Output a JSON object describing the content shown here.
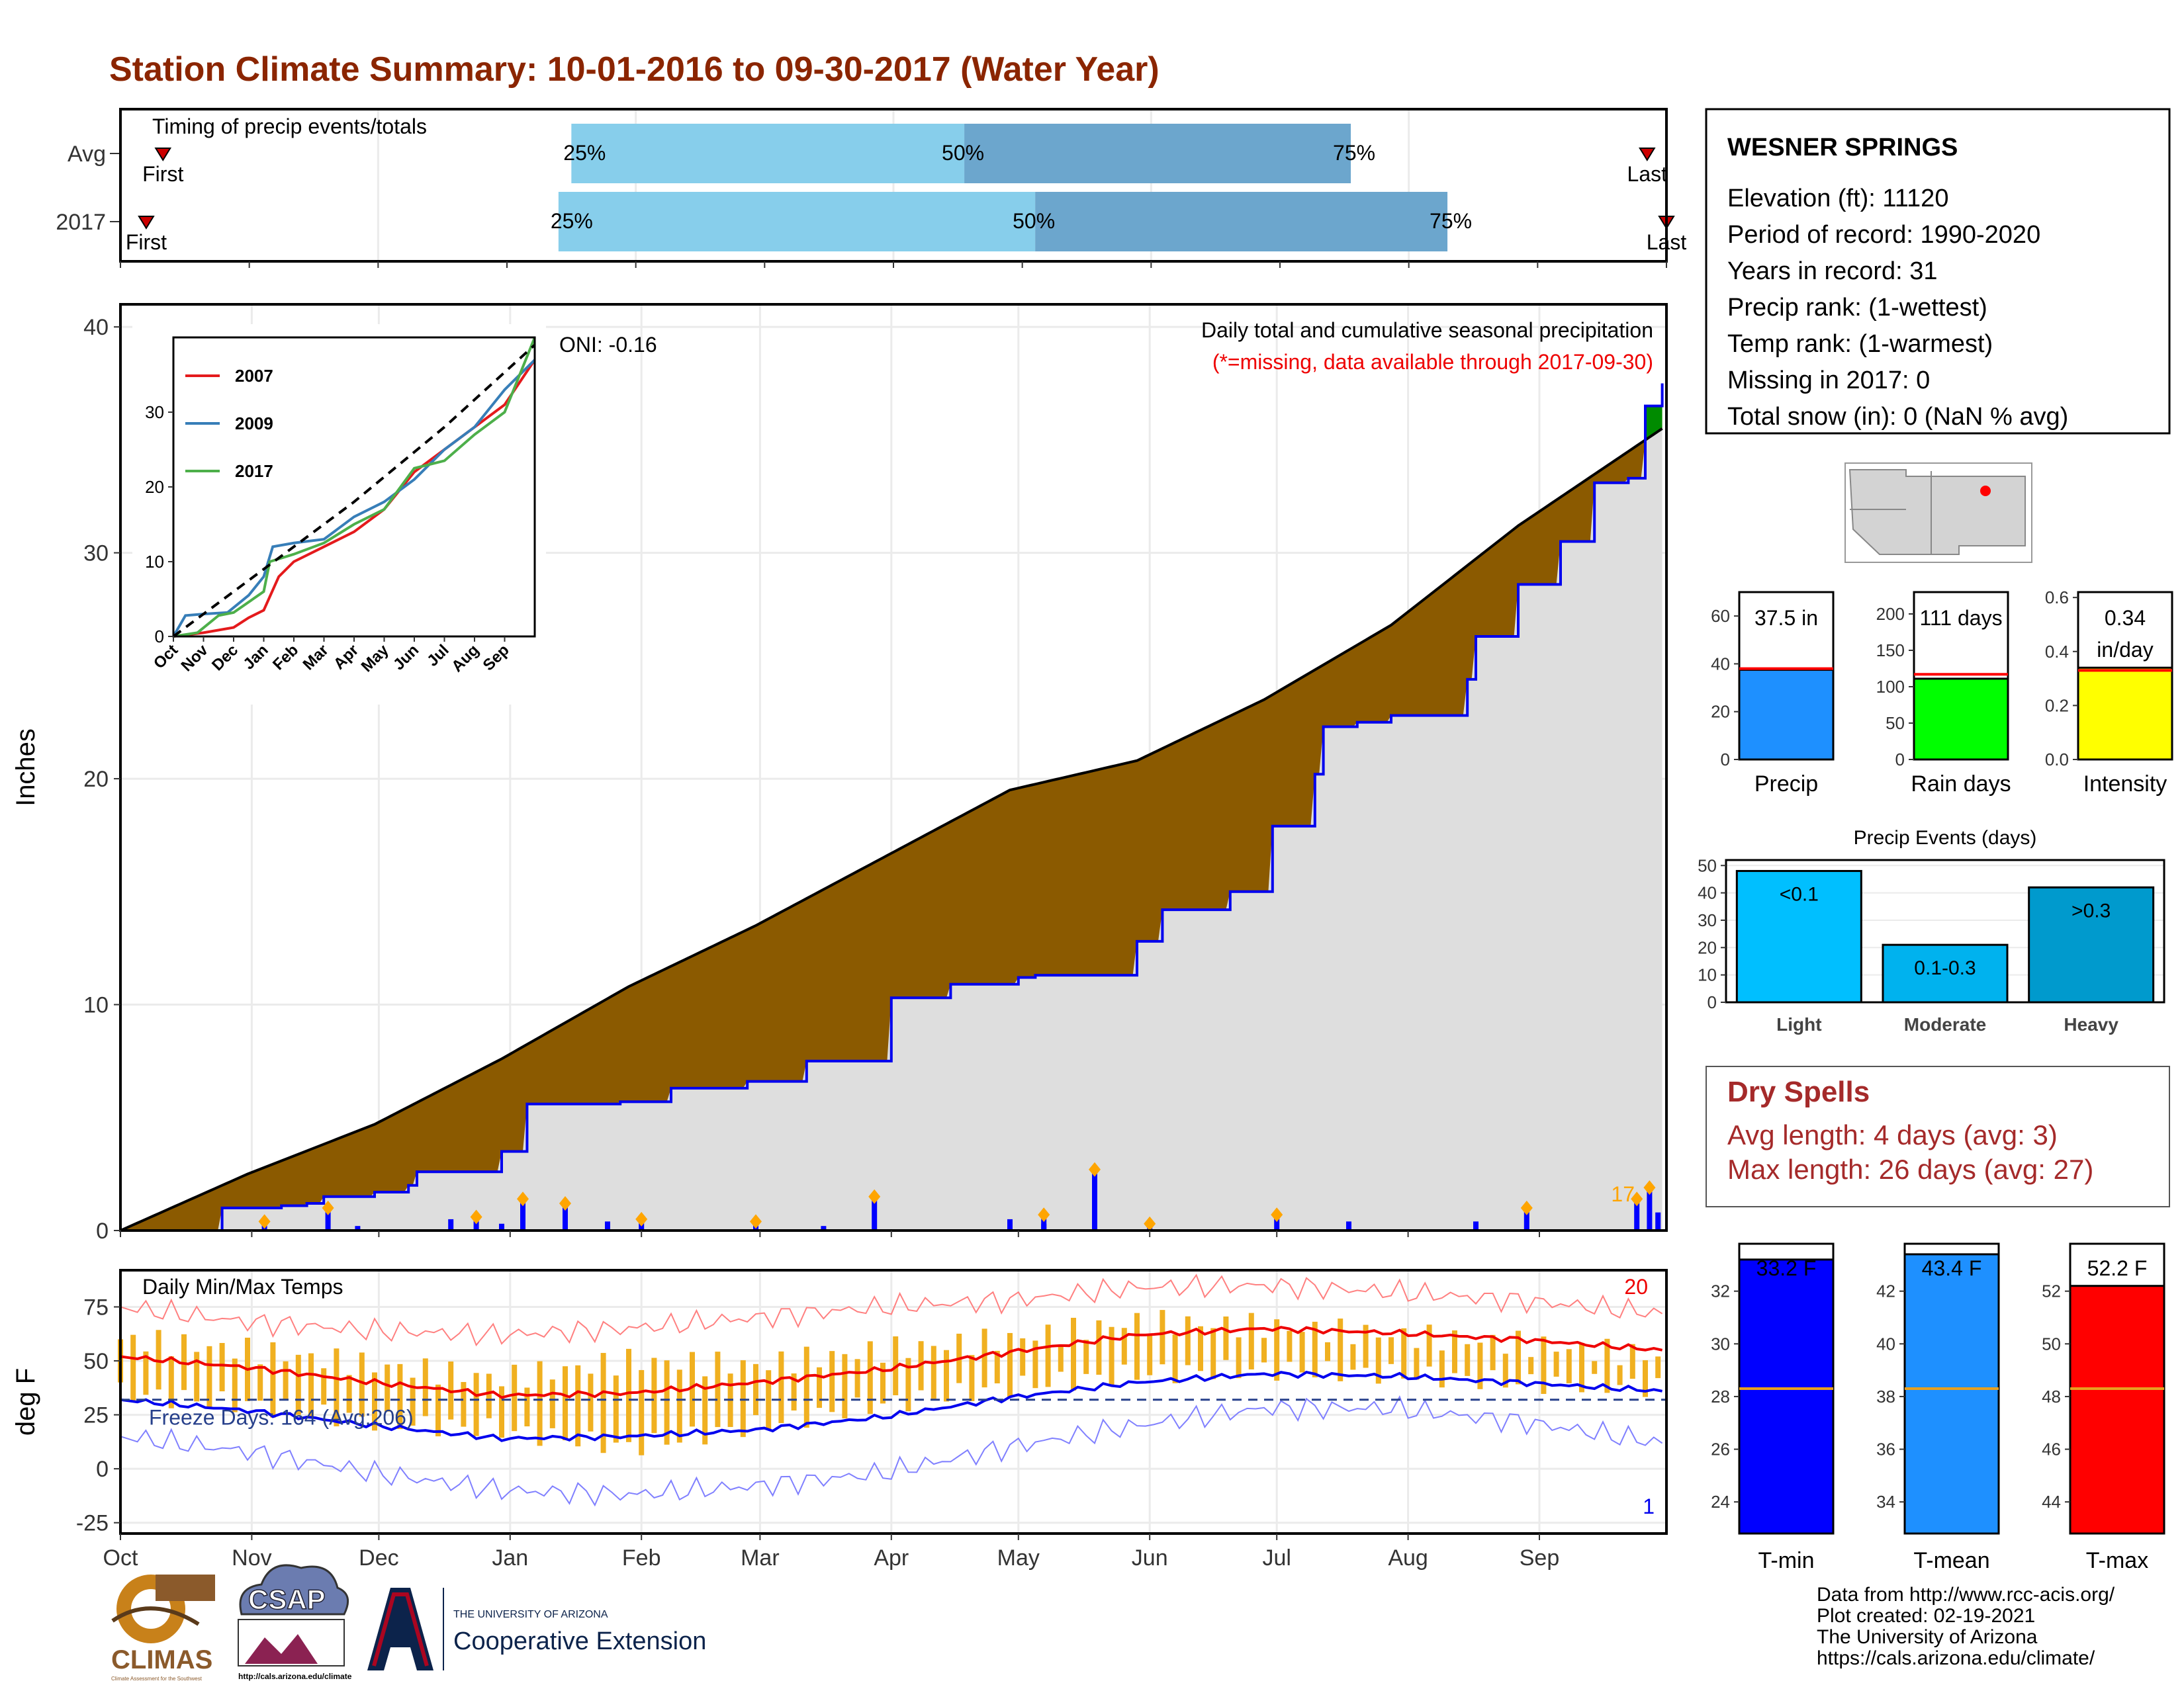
{
  "page": {
    "title": "Station Climate Summary: 10-01-2016 to 09-30-2017 (Water Year)",
    "title_color": "#8B2500",
    "footer_credit": [
      "Data from http://www.rcc-acis.org/",
      "Plot created: 02-19-2021",
      "The University of Arizona",
      "https://cals.arizona.edu/climate/"
    ],
    "logos": {
      "climas": "CLIMAS",
      "climas_subtitle": "Climate Assessment for the Southwest",
      "csap": "CSAP",
      "csap_url": "http://cals.arizona.edu/climate",
      "ua_letter": "A",
      "ua_small": "THE UNIVERSITY OF ARIZONA",
      "ua_extension": "Cooperative Extension"
    }
  },
  "chart_data": [
    {
      "id": "timing",
      "type": "bar",
      "title": "Timing of precip events/totals",
      "categories": [
        "Avg",
        "2017"
      ],
      "x_range_months": [
        0,
        12
      ],
      "rows": [
        {
          "label": "Avg",
          "first": 0.33,
          "last": 11.85,
          "q25": 3.5,
          "q50": 6.55,
          "q75": 9.55,
          "q25_label": "25%",
          "q50_label": "50%",
          "q75_label": "75%",
          "first_label": "First",
          "last_label": "Last"
        },
        {
          "label": "2017",
          "first": 0.2,
          "last": 12.0,
          "q25": 3.4,
          "q50": 7.1,
          "q75": 10.3,
          "q25_label": "25%",
          "q50_label": "50%",
          "q75_label": "75%",
          "first_label": "First",
          "last_label": "Last"
        }
      ],
      "colors": {
        "light": "#87CEEB",
        "dark": "#6CA6CD",
        "marker": "#CC0000"
      }
    },
    {
      "id": "precip",
      "type": "area",
      "title": "Daily total and cumulative seasonal precipitation",
      "subtitle": "(*=missing, data available through 2017-09-30)",
      "ylabel": "Inches",
      "ylim": [
        0,
        41
      ],
      "yticks": [
        0,
        10,
        20,
        30,
        40
      ],
      "oni": "ONI: -0.16",
      "count_label": "17",
      "months": [
        "Oct",
        "Nov",
        "Dec",
        "Jan",
        "Feb",
        "Mar",
        "Apr",
        "May",
        "Jun",
        "Jul",
        "Aug",
        "Sep"
      ],
      "series": [
        {
          "name": "2017 cumulative",
          "color": "#0000EE",
          "days": [
            0,
            20,
            24,
            38,
            44,
            48,
            60,
            68,
            70,
            90,
            96,
            118,
            130,
            148,
            162,
            182,
            196,
            212,
            216,
            240,
            246,
            262,
            272,
            282,
            284,
            292,
            300,
            318,
            320,
            330,
            340,
            348,
            356,
            360,
            364
          ],
          "values": [
            0,
            0,
            1.0,
            1.1,
            1.2,
            1.5,
            1.7,
            2.0,
            2.6,
            3.5,
            5.6,
            5.7,
            6.3,
            6.6,
            7.5,
            10.3,
            10.9,
            11.2,
            11.3,
            12.8,
            14.2,
            15.0,
            17.9,
            20.2,
            22.3,
            22.5,
            22.8,
            24.4,
            26.3,
            28.6,
            30.5,
            33.1,
            33.3,
            36.5,
            37.5
          ]
        },
        {
          "name": "Average cumulative",
          "color": "#000000",
          "days": [
            0,
            30,
            60,
            90,
            120,
            150,
            180,
            210,
            240,
            270,
            300,
            330,
            364
          ],
          "values": [
            0,
            2.5,
            4.7,
            7.6,
            10.8,
            13.5,
            16.5,
            19.5,
            20.8,
            23.5,
            26.8,
            31.2,
            35.5
          ]
        }
      ],
      "daily": [
        {
          "day": 34,
          "value": 0.4,
          "marker": true
        },
        {
          "day": 49,
          "value": 1.0,
          "marker": true
        },
        {
          "day": 56,
          "value": 0.2,
          "marker": false
        },
        {
          "day": 78,
          "value": 0.5,
          "marker": false
        },
        {
          "day": 84,
          "value": 0.6,
          "marker": true
        },
        {
          "day": 90,
          "value": 0.3,
          "marker": false
        },
        {
          "day": 95,
          "value": 1.4,
          "marker": true
        },
        {
          "day": 105,
          "value": 1.2,
          "marker": true
        },
        {
          "day": 115,
          "value": 0.4,
          "marker": false
        },
        {
          "day": 123,
          "value": 0.5,
          "marker": true
        },
        {
          "day": 150,
          "value": 0.4,
          "marker": true
        },
        {
          "day": 166,
          "value": 0.2,
          "marker": false
        },
        {
          "day": 178,
          "value": 1.5,
          "marker": true
        },
        {
          "day": 210,
          "value": 0.5,
          "marker": false
        },
        {
          "day": 218,
          "value": 0.7,
          "marker": true
        },
        {
          "day": 218,
          "value": 0.3,
          "marker": false
        },
        {
          "day": 230,
          "value": 2.7,
          "marker": true
        },
        {
          "day": 243,
          "value": 0.3,
          "marker": true
        },
        {
          "day": 273,
          "value": 0.7,
          "marker": true
        },
        {
          "day": 290,
          "value": 0.4,
          "marker": false
        },
        {
          "day": 320,
          "value": 0.4,
          "marker": false
        },
        {
          "day": 332,
          "value": 1.0,
          "marker": true
        },
        {
          "day": 358,
          "value": 1.4,
          "marker": true
        },
        {
          "day": 361,
          "value": 1.9,
          "marker": true
        },
        {
          "day": 363,
          "value": 0.8,
          "marker": false
        }
      ]
    },
    {
      "id": "inset",
      "type": "line",
      "ylim": [
        0,
        40
      ],
      "yticks": [
        0,
        10,
        20,
        30
      ],
      "months": [
        "Oct",
        "Nov",
        "Dec",
        "Jan",
        "Feb",
        "Mar",
        "Apr",
        "May",
        "Jun",
        "Jul",
        "Aug",
        "Sep"
      ],
      "series": [
        {
          "name": "2007",
          "color": "#E41A1C",
          "months": [
            0,
            1,
            2,
            2.5,
            3,
            3.5,
            4,
            5,
            6,
            7,
            8,
            9,
            10,
            11,
            12
          ],
          "values": [
            0,
            0.5,
            1.2,
            2.5,
            3.5,
            8,
            10,
            12,
            14,
            17,
            22,
            25,
            28,
            31,
            37
          ]
        },
        {
          "name": "2009",
          "color": "#377EB8",
          "months": [
            0,
            0.4,
            1,
            1.8,
            2.5,
            3,
            3.3,
            4,
            5,
            6,
            7,
            8,
            9,
            10,
            11,
            12
          ],
          "values": [
            0,
            2.8,
            3.0,
            3.2,
            5.5,
            8,
            12,
            12.5,
            13,
            16,
            18,
            21,
            25,
            28,
            33,
            37
          ]
        },
        {
          "name": "2017",
          "color": "#4DAF4A",
          "months": [
            0,
            0.8,
            1.5,
            2,
            3,
            3.2,
            4,
            5,
            6,
            7,
            8,
            9,
            10,
            11,
            12
          ],
          "values": [
            0,
            0.5,
            2.8,
            3.2,
            6,
            10,
            11,
            12.5,
            15,
            17,
            22.5,
            23.5,
            27,
            30,
            40
          ]
        },
        {
          "name": "avg",
          "color": "#000000",
          "dashed": true,
          "months": [
            0,
            3,
            6,
            9,
            12
          ],
          "values": [
            0,
            9,
            18,
            28,
            39
          ]
        }
      ]
    },
    {
      "id": "temps",
      "type": "line",
      "title": "Daily Min/Max Temps",
      "ylabel": "deg F",
      "ylim": [
        -30,
        92
      ],
      "yticks": [
        -25,
        0,
        25,
        50,
        75
      ],
      "freeze_label": "Freeze Days: 164 (Avg:206)",
      "freeze_line": 32,
      "record_high_count": "20",
      "record_low_count": "1",
      "months": [
        "Oct",
        "Nov",
        "Dec",
        "Jan",
        "Feb",
        "Mar",
        "Apr",
        "May",
        "Jun",
        "Jul",
        "Aug",
        "Sep"
      ],
      "avg_max": {
        "days": [
          0,
          30,
          60,
          90,
          120,
          150,
          180,
          210,
          240,
          270,
          300,
          330,
          364
        ],
        "values": [
          52,
          47,
          40,
          34,
          35,
          40,
          46,
          54,
          62,
          65,
          63,
          60,
          55
        ]
      },
      "avg_min": {
        "days": [
          0,
          30,
          60,
          90,
          120,
          150,
          180,
          210,
          240,
          270,
          300,
          330,
          364
        ],
        "values": [
          32,
          27,
          20,
          14,
          15,
          18,
          24,
          33,
          40,
          44,
          43,
          40,
          36
        ]
      },
      "record_max": {
        "days": [
          0,
          30,
          60,
          90,
          120,
          150,
          180,
          210,
          240,
          270,
          300,
          330,
          364
        ],
        "values": [
          75,
          68,
          64,
          62,
          65,
          70,
          75,
          78,
          84,
          85,
          82,
          78,
          72
        ]
      },
      "record_min": {
        "days": [
          0,
          30,
          60,
          90,
          120,
          150,
          180,
          210,
          240,
          270,
          300,
          330,
          364
        ],
        "values": [
          15,
          8,
          -2,
          -10,
          -12,
          -8,
          -2,
          10,
          20,
          28,
          28,
          22,
          12
        ]
      },
      "obs_max": {
        "days": [
          0,
          30,
          60,
          90,
          120,
          150,
          180,
          210,
          240,
          270,
          300,
          330,
          364
        ],
        "values": [
          60,
          55,
          48,
          42,
          50,
          48,
          55,
          60,
          68,
          66,
          62,
          58,
          52
        ]
      },
      "obs_min": {
        "days": [
          0,
          30,
          60,
          90,
          120,
          150,
          180,
          210,
          240,
          270,
          300,
          330,
          364
        ],
        "values": [
          35,
          30,
          22,
          18,
          10,
          20,
          30,
          38,
          44,
          46,
          44,
          40,
          38
        ]
      },
      "colors": {
        "bar": "#F0B020",
        "max": "#EE0000",
        "min": "#0000EE"
      }
    },
    {
      "id": "precip_summary",
      "type": "bar",
      "panels": [
        {
          "label": "Precip",
          "value": 37.5,
          "value_label": "37.5 in",
          "avg": 38,
          "ylim": [
            0,
            70
          ],
          "yticks": [
            0,
            20,
            40,
            60
          ],
          "color": "#1E90FF"
        },
        {
          "label": "Rain days",
          "value": 111,
          "value_label": "111 days",
          "avg": 117,
          "ylim": [
            0,
            230
          ],
          "yticks": [
            0,
            50,
            100,
            150,
            200
          ],
          "color": "#00FF00"
        },
        {
          "label": "Intensity",
          "value": 0.34,
          "value_label": "0.34",
          "value_label2": "in/day",
          "avg": 0.33,
          "ylim": [
            0,
            0.62
          ],
          "yticks": [
            0.0,
            0.2,
            0.4,
            0.6
          ],
          "color": "#FFFF00"
        }
      ]
    },
    {
      "id": "events",
      "type": "bar",
      "title": "Precip Events (days)",
      "categories": [
        "Light",
        "Moderate",
        "Heavy"
      ],
      "values": [
        48,
        21,
        42
      ],
      "value_labels": [
        "<0.1",
        "0.1-0.3",
        ">0.3"
      ],
      "ylim": [
        0,
        52
      ],
      "yticks": [
        0,
        10,
        20,
        30,
        40,
        50
      ],
      "colors": [
        "#00BFFF",
        "#00B2EE",
        "#009ACD"
      ]
    },
    {
      "id": "temp_summary",
      "type": "bar",
      "panels": [
        {
          "label": "T-min",
          "value": 33.2,
          "value_label": "33.2 F",
          "avg": 28.3,
          "ylim": [
            22.8,
            33.8
          ],
          "yticks": [
            24,
            26,
            28,
            30,
            32
          ],
          "color": "#0000FF"
        },
        {
          "label": "T-mean",
          "value": 43.4,
          "value_label": "43.4 F",
          "avg": 38.3,
          "ylim": [
            32.8,
            43.8
          ],
          "yticks": [
            34,
            36,
            38,
            40,
            42
          ],
          "color": "#1E90FF"
        },
        {
          "label": "T-max",
          "value": 52.2,
          "value_label": "52.2 F",
          "avg": 48.3,
          "ylim": [
            42.8,
            53.8
          ],
          "yticks": [
            44,
            46,
            48,
            50,
            52
          ],
          "color": "#FF0000"
        }
      ]
    }
  ],
  "station": {
    "name": "WESNER SPRINGS",
    "lines": [
      "Elevation (ft): 11120",
      "Period of record: 1990-2020",
      "Years in record: 31",
      "Precip rank:  (1-wettest)",
      "Temp rank:  (1-warmest)",
      "Missing in 2017: 0",
      "Total snow (in): 0 (NaN % avg)"
    ]
  },
  "dry_spells": {
    "title": "Dry Spells",
    "lines": [
      "Avg length: 4 days (avg: 3)",
      "Max length: 26 days (avg: 27)"
    ],
    "color": "#A52A2A"
  }
}
